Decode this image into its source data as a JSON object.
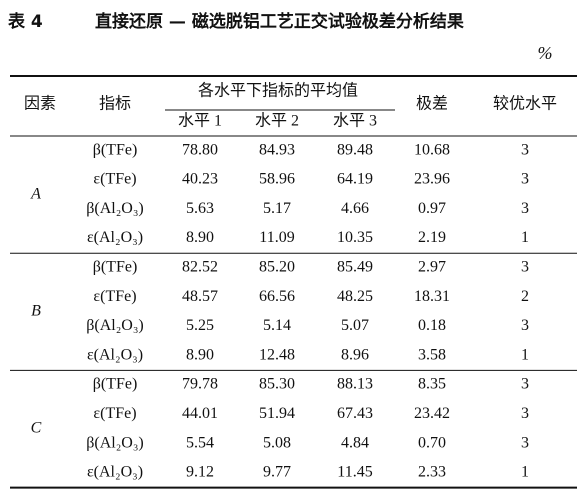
{
  "header": {
    "label": "表 4",
    "title": "直接还原 — 磁选脱铝工艺正交试验极差分析结果",
    "unit": "%"
  },
  "table": {
    "columns": {
      "factor": "因素",
      "indicator": "指标",
      "group": "各水平下指标的平均值",
      "levels": [
        "水平 1",
        "水平 2",
        "水平 3"
      ],
      "range": "极差",
      "optimal": "较优水平"
    },
    "groups": [
      {
        "factor": "A",
        "rows": [
          [
            "β(TFe)",
            "78.80",
            "84.93",
            "89.48",
            "10.68",
            "3"
          ],
          [
            "ε(TFe)",
            "40.23",
            "58.96",
            "64.19",
            "23.96",
            "3"
          ],
          [
            "β(Al₂O₃)",
            "5.63",
            "5.17",
            "4.66",
            "0.97",
            "3"
          ],
          [
            "ε(Al₂O₃)",
            "8.90",
            "11.09",
            "10.35",
            "2.19",
            "1"
          ]
        ]
      },
      {
        "factor": "B",
        "rows": [
          [
            "β(TFe)",
            "82.52",
            "85.20",
            "85.49",
            "2.97",
            "3"
          ],
          [
            "ε(TFe)",
            "48.57",
            "66.56",
            "48.25",
            "18.31",
            "2"
          ],
          [
            "β(Al₂O₃)",
            "5.25",
            "5.14",
            "5.07",
            "0.18",
            "3"
          ],
          [
            "ε(Al₂O₃)",
            "8.90",
            "12.48",
            "8.96",
            "3.58",
            "1"
          ]
        ]
      },
      {
        "factor": "C",
        "rows": [
          [
            "β(TFe)",
            "79.78",
            "85.30",
            "88.13",
            "8.35",
            "3"
          ],
          [
            "ε(TFe)",
            "44.01",
            "51.94",
            "67.43",
            "23.42",
            "3"
          ],
          [
            "β(Al₂O₃)",
            "5.54",
            "5.08",
            "4.84",
            "0.70",
            "3"
          ],
          [
            "ε(Al₂O₃)",
            "9.12",
            "9.77",
            "11.45",
            "2.33",
            "1"
          ]
        ]
      }
    ]
  }
}
